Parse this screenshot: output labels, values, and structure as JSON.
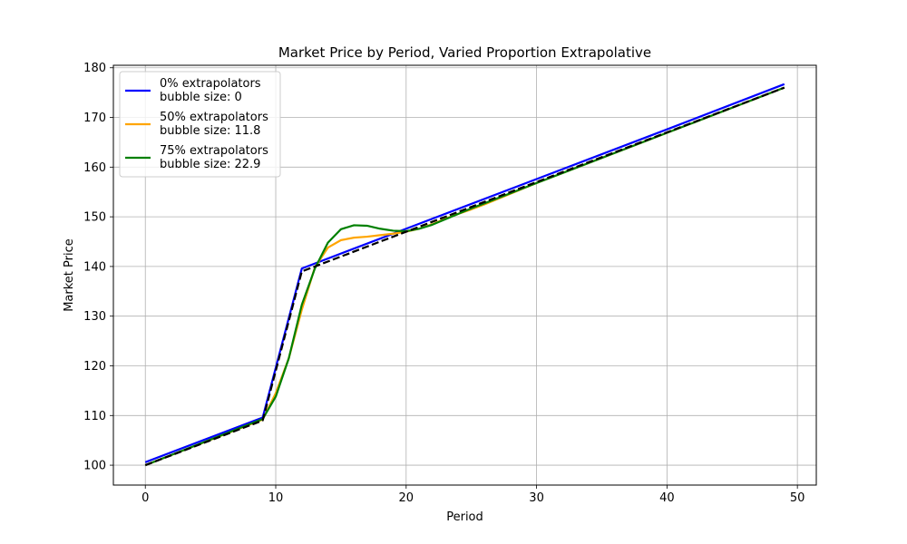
{
  "chart_data": {
    "type": "line",
    "title": "Market Price by Period, Varied Proportion Extrapolative",
    "xlabel": "Period",
    "ylabel": "Market Price",
    "xlim": [
      -2.45,
      51.45
    ],
    "ylim": [
      96,
      180.5
    ],
    "xticks": [
      0,
      10,
      20,
      30,
      40,
      50
    ],
    "yticks": [
      100,
      110,
      120,
      130,
      140,
      150,
      160,
      170,
      180
    ],
    "grid": true,
    "legend_position": "top-left",
    "series": [
      {
        "name": "0% extrapolators\nbubble size: 0",
        "legend_lines": [
          "0% extrapolators",
          "bubble size: 0"
        ],
        "color": "#0000ff",
        "dash": "solid",
        "x": [
          0,
          9,
          12,
          20,
          30,
          40,
          49
        ],
        "y": [
          100.6,
          109.6,
          139.6,
          147.6,
          157.6,
          167.6,
          176.7
        ]
      },
      {
        "name": "50% extrapolators\nbubble size: 11.8",
        "legend_lines": [
          "50% extrapolators",
          "bubble size: 11.8"
        ],
        "color": "#ffa500",
        "dash": "solid",
        "x": [
          0,
          9,
          10,
          11,
          12,
          13,
          14,
          15,
          16,
          17,
          18,
          19,
          20,
          21,
          22,
          23,
          24,
          25,
          26,
          30,
          40,
          49
        ],
        "y": [
          100.0,
          109.2,
          114.5,
          121.5,
          131.3,
          139.8,
          143.8,
          145.3,
          145.8,
          146.0,
          146.3,
          146.6,
          147.0,
          147.6,
          148.5,
          149.6,
          150.6,
          151.5,
          152.5,
          156.8,
          166.9,
          176.0
        ]
      },
      {
        "name": "75% extrapolators\nbubble size: 22.9",
        "legend_lines": [
          "75% extrapolators",
          "bubble size: 22.9"
        ],
        "color": "#008000",
        "dash": "solid",
        "x": [
          0,
          9,
          10,
          11,
          12,
          13,
          14,
          15,
          16,
          17,
          18,
          19,
          20,
          21,
          22,
          23,
          24,
          25,
          26,
          30,
          40,
          49
        ],
        "y": [
          100.0,
          109.3,
          113.8,
          121.5,
          132.3,
          139.6,
          144.8,
          147.5,
          148.3,
          148.2,
          147.6,
          147.2,
          147.1,
          147.6,
          148.4,
          149.5,
          150.6,
          151.7,
          152.7,
          156.8,
          166.9,
          176.0
        ]
      },
      {
        "color": "#000000",
        "dash": "dashed",
        "x": [
          0,
          9,
          12,
          20,
          30,
          40,
          49
        ],
        "y": [
          100.0,
          109.0,
          139.0,
          147.0,
          157.0,
          167.0,
          176.0
        ]
      }
    ]
  }
}
